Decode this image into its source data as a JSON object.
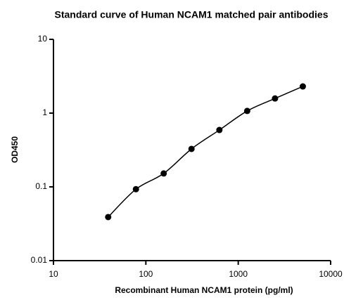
{
  "chart_data": {
    "type": "scatter",
    "title": "Standard curve of Human NCAM1 matched pair antibodies",
    "x_label": "Recombinant Human NCAM1 protein (pg/ml)",
    "y_label": "OD450",
    "xscale": "log",
    "yscale": "log",
    "xlim": [
      10,
      10000
    ],
    "xticks": [
      10,
      100,
      1000,
      10000
    ],
    "ylim": [
      0.01,
      10
    ],
    "yticks": [
      0.01,
      0.1,
      1,
      10
    ],
    "fit_line": true,
    "series": [
      {
        "color": "#000000",
        "x": [
          39.1,
          78.1,
          156,
          312,
          625,
          1250,
          2500,
          5000
        ],
        "values": [
          0.039,
          0.093,
          0.152,
          0.327,
          0.59,
          1.07,
          1.58,
          2.3
        ]
      }
    ]
  }
}
